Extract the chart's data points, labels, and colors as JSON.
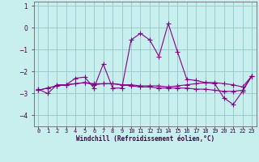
{
  "xlabel": "Windchill (Refroidissement éolien,°C)",
  "background_color": "#c8eeee",
  "grid_color": "#99cccc",
  "line_color": "#880088",
  "x_values": [
    0,
    1,
    2,
    3,
    4,
    5,
    6,
    7,
    8,
    9,
    10,
    11,
    12,
    13,
    14,
    15,
    16,
    17,
    18,
    19,
    20,
    21,
    22,
    23
  ],
  "series1": [
    -2.8,
    -3.0,
    -2.6,
    -2.6,
    -2.3,
    -2.25,
    -2.75,
    -1.65,
    -2.75,
    -2.75,
    -0.55,
    -0.25,
    -0.55,
    -1.3,
    0.2,
    -1.1,
    -2.35,
    -2.4,
    -2.5,
    -2.55,
    -3.2,
    -3.5,
    -2.9,
    -2.2
  ],
  "series2": [
    -2.85,
    -2.75,
    -2.65,
    -2.6,
    -2.55,
    -2.5,
    -2.55,
    -2.55,
    -2.55,
    -2.6,
    -2.6,
    -2.65,
    -2.65,
    -2.65,
    -2.7,
    -2.65,
    -2.6,
    -2.55,
    -2.5,
    -2.5,
    -2.55,
    -2.6,
    -2.7,
    -2.2
  ],
  "series3": [
    -2.85,
    -2.75,
    -2.65,
    -2.6,
    -2.55,
    -2.5,
    -2.6,
    -2.55,
    -2.55,
    -2.6,
    -2.65,
    -2.7,
    -2.7,
    -2.75,
    -2.75,
    -2.75,
    -2.75,
    -2.8,
    -2.8,
    -2.85,
    -2.9,
    -2.9,
    -2.85,
    -2.2
  ],
  "ylim": [
    -4.5,
    1.2
  ],
  "xlim": [
    -0.5,
    23.5
  ],
  "yticks": [
    1,
    0,
    -1,
    -2,
    -3,
    -4
  ],
  "xtick_labels": [
    "0",
    "1",
    "2",
    "3",
    "4",
    "5",
    "6",
    "7",
    "8",
    "9",
    "10",
    "11",
    "12",
    "13",
    "14",
    "15",
    "16",
    "17",
    "18",
    "19",
    "20",
    "21",
    "22",
    "23"
  ],
  "marker": "+",
  "markersize": 4,
  "linewidth": 0.8,
  "tick_fontsize": 5,
  "xlabel_fontsize": 5.5
}
